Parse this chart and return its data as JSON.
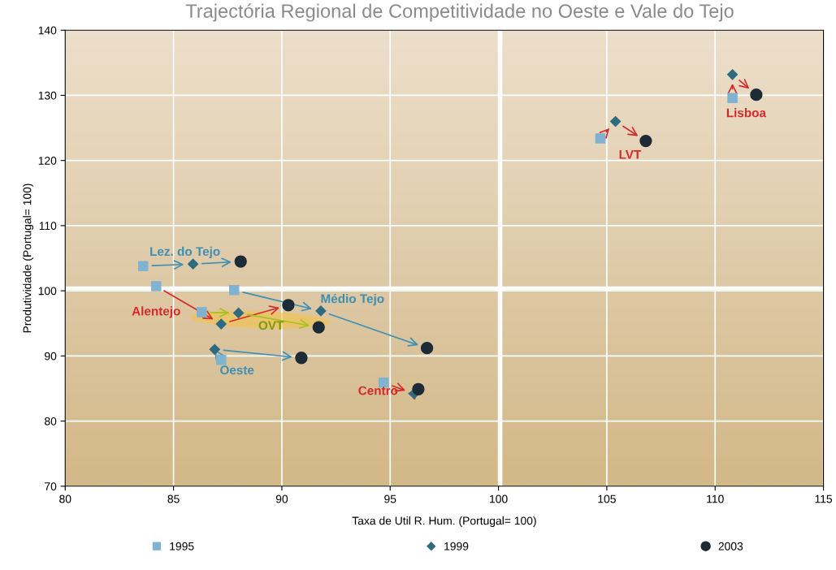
{
  "chart_data": {
    "type": "scatter",
    "title": "Trajectória Regional de Competitividade no Oeste e Vale do Tejo",
    "xlabel": "Taxa de Util R. Hum. (Portugal= 100)",
    "ylabel": "Produtividade (Portugal= 100)",
    "xlim": [
      80,
      115
    ],
    "xticks": [
      80,
      85,
      90,
      95,
      100,
      105,
      110,
      115
    ],
    "ylim": [
      70,
      140
    ],
    "yticks": [
      70,
      80,
      90,
      100,
      110,
      120,
      130,
      140
    ],
    "grid": true,
    "legend": "bottom",
    "series": [
      {
        "name": "1995",
        "color": "#7fb3d0",
        "marker": "square",
        "x": [
          83.6,
          84.2,
          87.8,
          86.3,
          87.2,
          94.7,
          104.7,
          110.8
        ],
        "values": [
          103.8,
          100.7,
          100.1,
          96.7,
          89.4,
          85.9,
          123.4,
          129.6
        ]
      },
      {
        "name": "1999",
        "color": "#2e6b80",
        "marker": "diamond",
        "x": [
          85.9,
          87.2,
          91.8,
          88.0,
          86.9,
          96.1,
          105.4,
          110.8
        ],
        "values": [
          104.1,
          94.9,
          96.9,
          96.6,
          91.0,
          84.2,
          126.0,
          133.2
        ]
      },
      {
        "name": "2003",
        "color": "#1c2b36",
        "marker": "circle",
        "x": [
          88.1,
          90.3,
          96.7,
          91.7,
          90.9,
          96.3,
          106.8,
          111.9
        ],
        "values": [
          104.5,
          97.8,
          91.2,
          94.4,
          89.7,
          84.9,
          123.0,
          130.1
        ]
      }
    ],
    "annotations": [
      "Lez. do Tejo",
      "Alentejo",
      {
        "text": "Médio Tejo",
        "x": 91.8,
        "y": 96.9
      },
      "OVT",
      "Oeste",
      "Centro",
      "LVT",
      "Lisboa"
    ],
    "ref_lines": [
      {
        "axis": "y",
        "value": 100.4,
        "color": "#ffffff"
      },
      {
        "axis": "x",
        "value": 100.1,
        "color": "#ffffff"
      }
    ]
  }
}
